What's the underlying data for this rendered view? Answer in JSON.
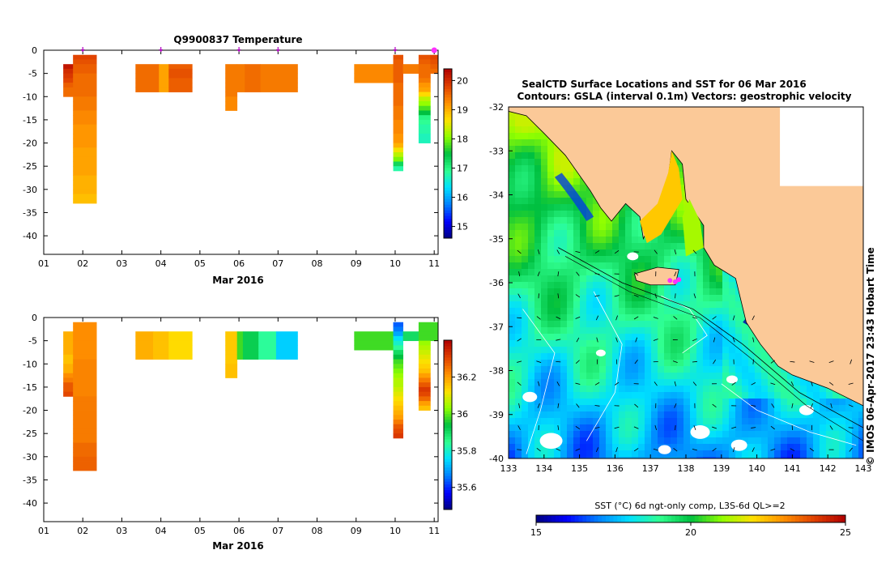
{
  "colors": {
    "land": "#fbc998",
    "frame": "#000000",
    "marker": "#b000c0",
    "station": "#ff30ff"
  },
  "temperature_panel": {
    "title": "Q9900837  Temperature",
    "xlabel": "Mar 2016"
  },
  "salinity_panel": {
    "xlabel": "Mar 2016"
  },
  "map": {
    "title_line1": "SealCTD Surface Locations and SST for 06 Mar 2016",
    "title_line2": "Contours: GSLA (interval 0.1m) Vectors: geostrophic velocity",
    "credit": "© IMOS 06-Apr-2017 23:43 Hobart Time",
    "colorbar_label": "SST (°C) 6d ngt-only comp, L3S-6d QL>=2"
  },
  "chart_data": [
    {
      "type": "heatmap",
      "title": "Q9900837  Temperature",
      "xlabel": "Mar 2016",
      "ylabel": "",
      "xlim": [
        1,
        11.1
      ],
      "ylim": [
        -44,
        0
      ],
      "xticks": [
        "01",
        "02",
        "03",
        "04",
        "05",
        "06",
        "07",
        "08",
        "09",
        "10",
        "11"
      ],
      "yticks": [
        0,
        -5,
        -10,
        -15,
        -20,
        -25,
        -30,
        -35,
        -40
      ],
      "profile_markers_day": [
        2.0,
        4.0,
        6.0,
        7.0,
        10.0,
        11.0
      ],
      "colorbar": {
        "min": 14.6,
        "max": 20.4,
        "ticks": [
          15,
          16,
          17,
          18,
          19,
          20
        ]
      },
      "profiles": [
        {
          "x0": 1.5,
          "x1": 1.75,
          "depth_top": -3,
          "values": [
            20.2,
            20.0,
            19.9,
            19.8,
            19.6,
            19.5,
            19.5
          ]
        },
        {
          "x0": 1.75,
          "x1": 2.35,
          "depth_top": -1,
          "values": [
            19.8,
            19.7,
            19.6,
            19.6,
            19.5,
            19.5,
            19.5,
            19.5,
            19.5,
            19.4,
            19.4,
            19.4,
            19.3,
            19.3,
            19.3,
            19.2,
            19.2,
            19.2,
            19.2,
            19.2,
            19.1,
            19.1,
            19.1,
            19.1,
            19.1,
            19.1,
            19.0,
            19.0,
            19.0,
            19.0,
            18.9,
            18.9
          ]
        },
        {
          "x0": 3.35,
          "x1": 3.95,
          "depth_top": -3,
          "values": [
            19.5,
            19.5,
            19.5,
            19.5,
            19.5,
            19.5
          ]
        },
        {
          "x0": 3.95,
          "x1": 4.2,
          "depth_top": -3,
          "values": [
            19.1,
            19.1,
            19.1,
            19.1,
            19.1,
            19.1
          ]
        },
        {
          "x0": 4.2,
          "x1": 4.8,
          "depth_top": -3,
          "values": [
            19.6,
            19.7,
            19.7,
            19.6,
            19.6,
            19.6
          ]
        },
        {
          "x0": 5.65,
          "x1": 5.95,
          "depth_top": -3,
          "values": [
            19.4,
            19.4,
            19.4,
            19.4,
            19.4,
            19.4,
            19.4,
            19.3,
            19.3,
            19.3
          ]
        },
        {
          "x0": 5.95,
          "x1": 6.15,
          "depth_top": -3,
          "values": [
            19.4,
            19.4,
            19.4,
            19.4,
            19.4,
            19.4
          ]
        },
        {
          "x0": 6.15,
          "x1": 6.55,
          "depth_top": -3,
          "values": [
            19.5,
            19.5,
            19.5,
            19.5,
            19.5,
            19.5
          ]
        },
        {
          "x0": 6.55,
          "x1": 7.5,
          "depth_top": -3,
          "values": [
            19.4,
            19.4,
            19.4,
            19.4,
            19.4,
            19.4
          ]
        },
        {
          "x0": 8.95,
          "x1": 9.95,
          "depth_top": -3,
          "values": [
            19.3,
            19.3,
            19.3,
            19.3
          ]
        },
        {
          "x0": 9.95,
          "x1": 10.2,
          "depth_top": -1,
          "values": [
            19.7,
            19.6,
            19.6,
            19.6,
            19.6,
            19.6,
            19.5,
            19.5,
            19.5,
            19.5,
            19.5,
            19.4,
            19.4,
            19.4,
            19.3,
            19.3,
            19.3,
            19.2,
            19.2,
            19.0,
            18.6,
            18.3,
            18.0,
            17.3,
            16.8
          ]
        },
        {
          "x0": 10.2,
          "x1": 10.6,
          "depth_top": -3,
          "values": [
            19.4,
            19.4
          ]
        },
        {
          "x0": 10.6,
          "x1": 10.9,
          "depth_top": -1,
          "values": [
            19.7,
            19.6,
            19.5,
            19.5,
            19.5,
            19.4,
            19.2,
            19.1,
            18.7,
            18.3,
            18.1,
            17.8,
            17.5,
            17.0,
            16.9,
            16.8,
            16.8,
            16.7,
            16.7
          ]
        },
        {
          "x0": 10.9,
          "x1": 11.1,
          "depth_top": -1,
          "values": [
            19.8,
            19.7,
            19.6,
            19.5
          ]
        }
      ]
    },
    {
      "type": "heatmap",
      "title": "",
      "xlabel": "Mar 2016",
      "ylabel": "",
      "xlim": [
        1,
        11.1
      ],
      "ylim": [
        -44,
        0
      ],
      "xticks": [
        "01",
        "02",
        "03",
        "04",
        "05",
        "06",
        "07",
        "08",
        "09",
        "10",
        "11"
      ],
      "yticks": [
        0,
        -5,
        -10,
        -15,
        -20,
        -25,
        -30,
        -35,
        -40
      ],
      "colorbar": {
        "min": 35.48,
        "max": 36.4,
        "ticks": [
          35.6,
          35.8,
          36,
          36.2
        ]
      },
      "profiles": [
        {
          "x0": 1.5,
          "x1": 1.75,
          "depth_top": -3,
          "values": [
            36.18,
            36.18,
            36.18,
            36.18,
            36.18,
            36.16,
            36.16,
            36.18,
            36.18,
            36.22,
            36.24,
            36.28,
            36.28,
            36.3
          ]
        },
        {
          "x0": 1.75,
          "x1": 2.35,
          "depth_top": -1,
          "values": [
            36.22,
            36.22,
            36.22,
            36.22,
            36.22,
            36.22,
            36.22,
            36.22,
            36.23,
            36.23,
            36.23,
            36.23,
            36.23,
            36.23,
            36.23,
            36.23,
            36.24,
            36.24,
            36.24,
            36.24,
            36.24,
            36.24,
            36.24,
            36.24,
            36.24,
            36.24,
            36.26,
            36.26,
            36.26,
            36.27,
            36.27,
            36.27
          ]
        },
        {
          "x0": 3.35,
          "x1": 3.8,
          "depth_top": -3,
          "values": [
            36.18,
            36.18,
            36.18,
            36.18,
            36.18,
            36.18
          ]
        },
        {
          "x0": 3.8,
          "x1": 4.2,
          "depth_top": -3,
          "values": [
            36.16,
            36.16,
            36.16,
            36.16,
            36.16,
            36.16
          ]
        },
        {
          "x0": 4.2,
          "x1": 4.8,
          "depth_top": -3,
          "values": [
            36.13,
            36.13,
            36.13,
            36.13,
            36.13,
            36.13
          ]
        },
        {
          "x0": 5.65,
          "x1": 5.95,
          "depth_top": -3,
          "values": [
            36.15,
            36.15,
            36.15,
            36.15,
            36.15,
            36.15,
            36.15,
            36.16,
            36.16,
            36.16
          ]
        },
        {
          "x0": 5.95,
          "x1": 6.1,
          "depth_top": -3,
          "values": [
            35.98,
            35.98,
            35.98,
            35.98,
            35.98,
            35.98
          ]
        },
        {
          "x0": 6.1,
          "x1": 6.5,
          "depth_top": -3,
          "values": [
            35.92,
            35.92,
            35.92,
            35.92,
            35.92,
            35.92
          ]
        },
        {
          "x0": 6.5,
          "x1": 6.95,
          "depth_top": -3,
          "values": [
            35.84,
            35.84,
            35.84,
            35.84,
            35.84,
            35.84
          ]
        },
        {
          "x0": 6.95,
          "x1": 7.5,
          "depth_top": -3,
          "values": [
            35.74,
            35.74,
            35.74,
            35.74,
            35.74,
            35.74
          ]
        },
        {
          "x0": 8.95,
          "x1": 9.95,
          "depth_top": -3,
          "values": [
            35.98,
            35.98,
            35.98,
            35.98
          ]
        },
        {
          "x0": 9.95,
          "x1": 10.2,
          "depth_top": -1,
          "values": [
            35.64,
            35.66,
            35.7,
            35.76,
            35.8,
            35.84,
            35.9,
            35.94,
            35.98,
            36.0,
            36.02,
            36.04,
            36.06,
            36.06,
            36.08,
            36.1,
            36.12,
            36.14,
            36.16,
            36.18,
            36.2,
            36.24,
            36.28,
            36.3,
            36.32
          ]
        },
        {
          "x0": 10.2,
          "x1": 10.6,
          "depth_top": -3,
          "values": [
            35.9,
            35.9
          ]
        },
        {
          "x0": 10.6,
          "x1": 10.9,
          "depth_top": -1,
          "values": [
            35.98,
            35.98,
            35.98,
            35.98,
            36.04,
            36.06,
            36.08,
            36.1,
            36.12,
            36.14,
            36.16,
            36.2,
            36.24,
            36.28,
            36.32,
            36.3,
            36.26,
            36.2,
            36.16
          ]
        },
        {
          "x0": 10.9,
          "x1": 11.1,
          "depth_top": -1,
          "values": [
            35.98,
            35.98,
            35.98,
            35.98
          ]
        }
      ]
    },
    {
      "type": "heatmap",
      "title": "SealCTD Surface Locations and SST for 06 Mar 2016",
      "xlabel": "",
      "ylabel": "",
      "xlim": [
        133,
        143
      ],
      "ylim": [
        -40,
        -32
      ],
      "xticks": [
        133,
        134,
        135,
        136,
        137,
        138,
        139,
        140,
        141,
        142,
        143
      ],
      "yticks": [
        -32,
        -33,
        -34,
        -35,
        -36,
        -37,
        -38,
        -39,
        -40
      ],
      "colorbar": {
        "min": 15,
        "max": 25,
        "ticks": [
          15,
          20,
          25
        ]
      },
      "station_positions": [
        {
          "lon": 137.55,
          "lat": -35.95
        },
        {
          "lon": 137.7,
          "lat": -35.98
        },
        {
          "lon": 137.8,
          "lat": -35.93
        }
      ]
    }
  ]
}
